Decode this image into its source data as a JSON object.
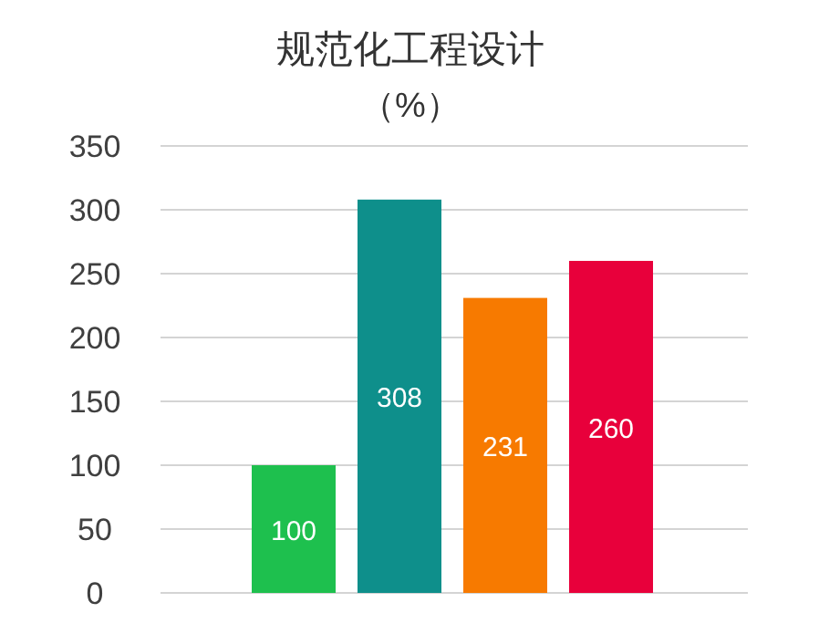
{
  "chart_data": {
    "type": "bar",
    "title": "规范化工程设计",
    "subtitle": "（%）",
    "categories": [
      null,
      null,
      null,
      null
    ],
    "values": [
      100,
      308,
      231,
      260
    ],
    "colors": [
      "#1ec04e",
      "#0e8f8b",
      "#f77a00",
      "#e8003b"
    ],
    "ylim": [
      0,
      350
    ],
    "yticks": [
      0,
      50,
      100,
      150,
      200,
      250,
      300,
      350
    ],
    "grid": "y",
    "data_labels": true
  }
}
